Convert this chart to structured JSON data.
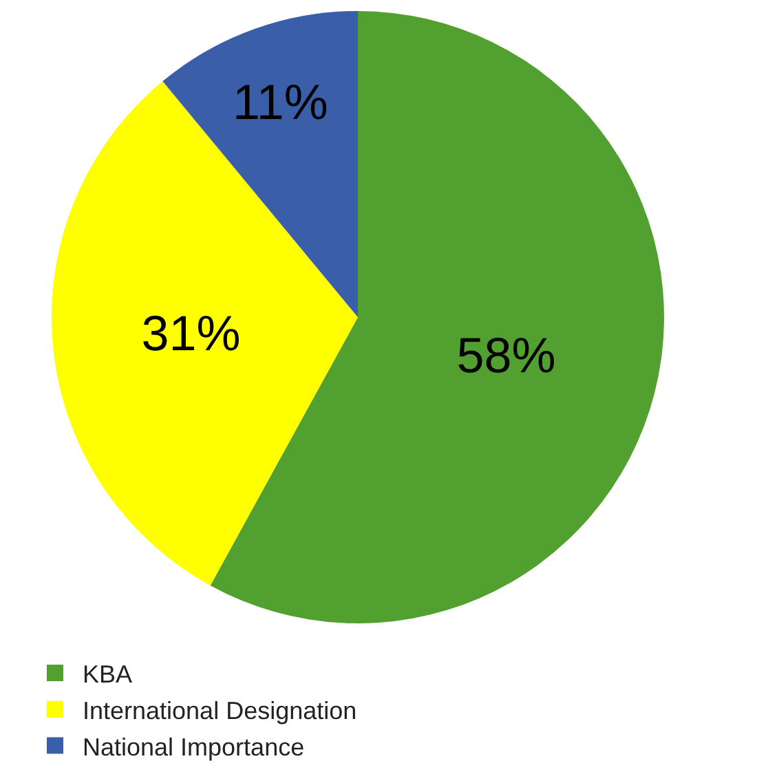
{
  "chart_data": {
    "type": "pie",
    "categories": [
      "KBA",
      "International Designation",
      "National Importance"
    ],
    "values": [
      58,
      31,
      11
    ],
    "colors": [
      "#52a030",
      "#ffff00",
      "#3a5ea8"
    ],
    "value_labels": [
      "58%",
      "31%",
      "11%"
    ],
    "legend": "bottom"
  }
}
